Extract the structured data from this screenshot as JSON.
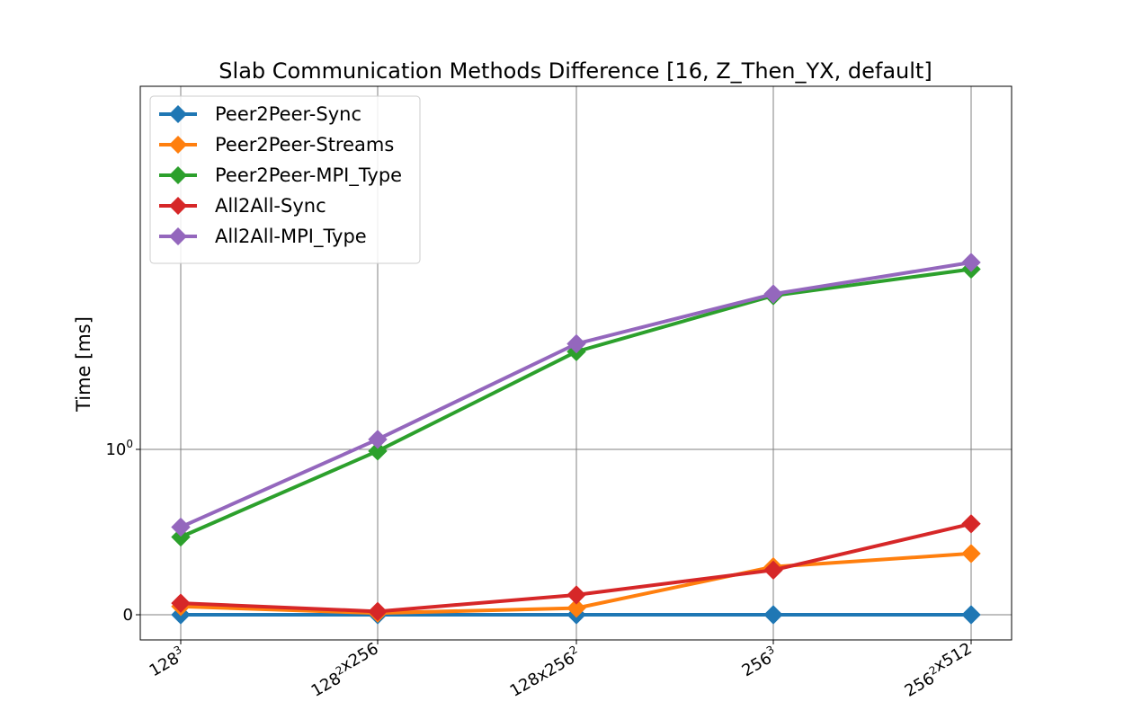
{
  "chart_data": {
    "type": "line",
    "title": "Slab Communication Methods Difference [16, Z_Then_YX, default]",
    "xlabel": "",
    "ylabel": "Time [ms]",
    "yscale": "symlog",
    "linthresh": 1,
    "ylim": [
      -0.15,
      20
    ],
    "categories": [
      {
        "base": "128",
        "sup": "3",
        "rest": "",
        "sup2": "",
        "rest2": ""
      },
      {
        "base": "128",
        "sup": "2",
        "rest": "x256",
        "sup2": "",
        "rest2": ""
      },
      {
        "base": "128x256",
        "sup": "2",
        "rest": "",
        "sup2": "",
        "rest2": ""
      },
      {
        "base": "256",
        "sup": "3",
        "rest": "",
        "sup2": "",
        "rest2": ""
      },
      {
        "base": "256",
        "sup": "2",
        "rest": "x512",
        "sup2": "",
        "rest2": ""
      }
    ],
    "yticks": [
      {
        "value": 0,
        "base": "0",
        "sup": ""
      },
      {
        "value": 1,
        "base": "10",
        "sup": "0"
      }
    ],
    "grid": true,
    "legend_position": "top-left",
    "series": [
      {
        "name": "Peer2Peer-Sync",
        "color": "#1f77b4",
        "values": [
          0.0,
          0.0,
          0.0,
          0.0,
          0.0
        ]
      },
      {
        "name": "Peer2Peer-Streams",
        "color": "#ff7f0e",
        "values": [
          0.05,
          0.01,
          0.04,
          0.29,
          0.37
        ]
      },
      {
        "name": "Peer2Peer-MPI_Type",
        "color": "#2ca02c",
        "values": [
          0.47,
          0.99,
          3.9,
          8.5,
          12.3
        ]
      },
      {
        "name": "All2All-Sync",
        "color": "#d62728",
        "values": [
          0.07,
          0.02,
          0.12,
          0.27,
          0.55
        ]
      },
      {
        "name": "All2All-MPI_Type",
        "color": "#9467bd",
        "values": [
          0.53,
          1.15,
          4.35,
          8.7,
          13.5
        ]
      }
    ]
  }
}
